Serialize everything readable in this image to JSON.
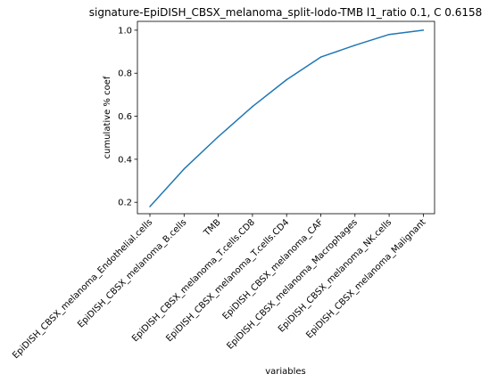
{
  "chart_data": {
    "type": "line",
    "title": "signature-EpiDISH_CBSX_melanoma_split-lodo-TMB l1_ratio 0.1, C 0.6158",
    "xlabel": "variables",
    "ylabel": "cumulative % coef",
    "categories": [
      "EpiDISH_CBSX_melanoma_Endothelial.cells",
      "EpiDISH_CBSX_melanoma_B.cells",
      "TMB",
      "EpiDISH_CBSX_melanoma_T.cells.CD8",
      "EpiDISH_CBSX_melanoma_T.cells.CD4",
      "EpiDISH_CBSX_melanoma_CAF",
      "EpiDISH_CBSX_melanoma_Macrophages",
      "EpiDISH_CBSX_melanoma_NK.cells",
      "EpiDISH_CBSX_melanoma_Malignant"
    ],
    "series": [
      {
        "values": [
          0.18,
          0.355,
          0.505,
          0.645,
          0.77,
          0.875,
          0.93,
          0.98,
          1.0
        ],
        "color": "#1f77b4"
      }
    ],
    "yticks": [
      "0.2",
      "0.4",
      "0.6",
      "0.8",
      "1.0"
    ],
    "ylim": [
      0.147,
      1.041
    ],
    "grid": false,
    "legend": "none"
  }
}
